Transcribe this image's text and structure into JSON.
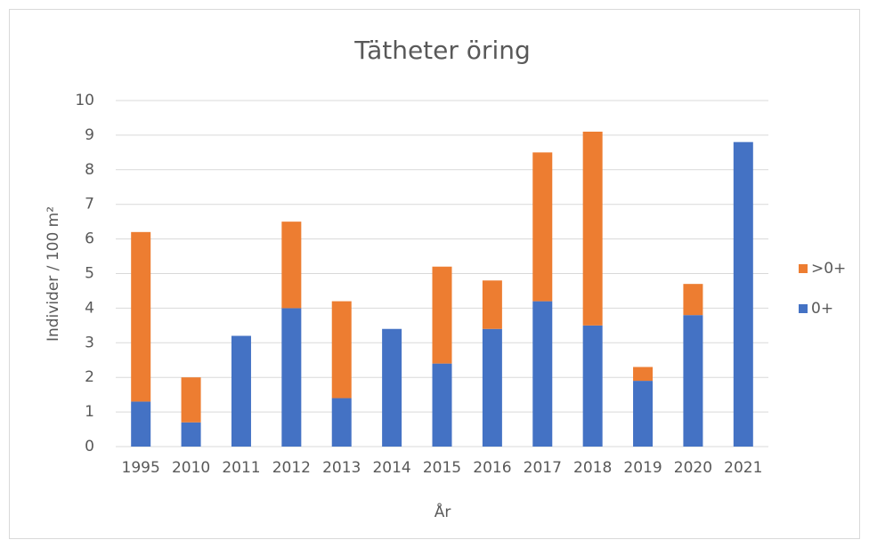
{
  "chart_data": {
    "type": "stacked_bar",
    "title": "Tätheter öring",
    "x_label": "År",
    "y_label": "Individer / 100 m²",
    "categories": [
      "1995",
      "2010",
      "2011",
      "2012",
      "2013",
      "2014",
      "2015",
      "2016",
      "2017",
      "2018",
      "2019",
      "2020",
      "2021"
    ],
    "series": [
      {
        "name": "0+",
        "color": "#4472c4",
        "values": [
          1.3,
          0.7,
          3.2,
          4.0,
          1.4,
          3.4,
          2.4,
          3.4,
          4.2,
          3.5,
          1.9,
          3.8,
          8.8
        ]
      },
      {
        "name": ">0+",
        "color": "#ed7d31",
        "values": [
          4.9,
          1.3,
          0,
          2.5,
          2.8,
          0,
          2.8,
          1.4,
          4.3,
          5.6,
          0.4,
          0.9,
          0
        ]
      }
    ],
    "ylim": [
      0,
      10
    ],
    "yticks": [
      0,
      1,
      2,
      3,
      4,
      5,
      6,
      7,
      8,
      9,
      10
    ],
    "grid": true,
    "legend": "right"
  }
}
